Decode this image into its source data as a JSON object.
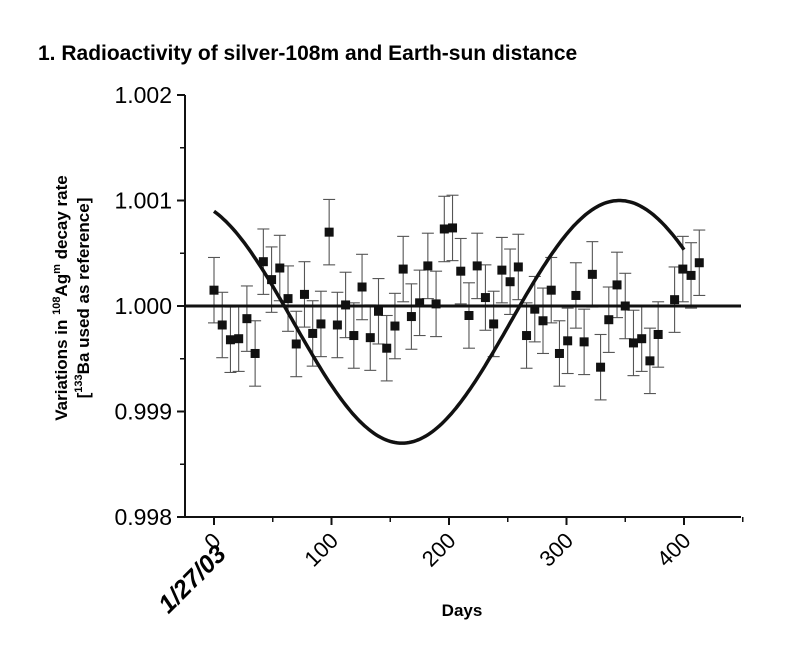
{
  "chart_data": {
    "type": "scatter",
    "title": "1. Radioactivity of silver-108m and Earth-sun distance",
    "xlabel": "Days",
    "ylabel": {
      "line1_prefix": "Variations in ",
      "line1_sup": "108",
      "line1_mid": "Ag",
      "line1_sup2": "m",
      "line1_suffix": " decay rate",
      "line2_prefix": "[",
      "line2_sup": "133",
      "line2_suffix": "Ba used as reference]"
    },
    "start_date": "1/27/03",
    "xlim": [
      0,
      450
    ],
    "ylim": [
      0.998,
      1.002
    ],
    "xticks": [
      {
        "value": 0,
        "label": "0"
      },
      {
        "value": 100,
        "label": "100"
      },
      {
        "value": 200,
        "label": "200"
      },
      {
        "value": 300,
        "label": "300"
      },
      {
        "value": 400,
        "label": "400"
      }
    ],
    "yticks": [
      {
        "value": 0.998,
        "label": "0.998"
      },
      {
        "value": 0.999,
        "label": "0.999"
      },
      {
        "value": 1.0,
        "label": "1.000"
      },
      {
        "value": 1.001,
        "label": "1.001"
      },
      {
        "value": 1.002,
        "label": "1.002"
      }
    ],
    "reference_line": 1.0,
    "curve": {
      "x_start": 0,
      "x_end": 400,
      "mean": 0.99985,
      "amplitude": 0.00115,
      "peak_day": 345,
      "period": 370
    },
    "error": 0.00031,
    "series": [
      {
        "values": [
          {
            "x": 0,
            "y": 1.00015
          },
          {
            "x": 7,
            "y": 0.99982
          },
          {
            "x": 14,
            "y": 0.99968
          },
          {
            "x": 21,
            "y": 0.99969
          },
          {
            "x": 28,
            "y": 0.99988
          },
          {
            "x": 35,
            "y": 0.99955
          },
          {
            "x": 42,
            "y": 1.00042
          },
          {
            "x": 49,
            "y": 1.00025
          },
          {
            "x": 56,
            "y": 1.00036
          },
          {
            "x": 63,
            "y": 1.00007
          },
          {
            "x": 70,
            "y": 0.99964
          },
          {
            "x": 77,
            "y": 1.00011
          },
          {
            "x": 84,
            "y": 0.99974
          },
          {
            "x": 91,
            "y": 0.99983
          },
          {
            "x": 98,
            "y": 1.0007
          },
          {
            "x": 105,
            "y": 0.99982
          },
          {
            "x": 112,
            "y": 1.00001
          },
          {
            "x": 119,
            "y": 0.99972
          },
          {
            "x": 126,
            "y": 1.00018
          },
          {
            "x": 133,
            "y": 0.9997
          },
          {
            "x": 140,
            "y": 0.99995
          },
          {
            "x": 147,
            "y": 0.9996
          },
          {
            "x": 154,
            "y": 0.99981
          },
          {
            "x": 161,
            "y": 1.00035
          },
          {
            "x": 168,
            "y": 0.9999
          },
          {
            "x": 175,
            "y": 1.00003
          },
          {
            "x": 182,
            "y": 1.00038
          },
          {
            "x": 189,
            "y": 1.00002
          },
          {
            "x": 196,
            "y": 1.00073
          },
          {
            "x": 203,
            "y": 1.00074
          },
          {
            "x": 210,
            "y": 1.00033
          },
          {
            "x": 217,
            "y": 0.99991
          },
          {
            "x": 224,
            "y": 1.00038
          },
          {
            "x": 231,
            "y": 1.00008
          },
          {
            "x": 238,
            "y": 0.99983
          },
          {
            "x": 245,
            "y": 1.00034
          },
          {
            "x": 252,
            "y": 1.00023
          },
          {
            "x": 259,
            "y": 1.00037
          },
          {
            "x": 266,
            "y": 0.99972
          },
          {
            "x": 273,
            "y": 0.99997
          },
          {
            "x": 280,
            "y": 0.99986
          },
          {
            "x": 287,
            "y": 1.00015
          },
          {
            "x": 294,
            "y": 0.99955
          },
          {
            "x": 301,
            "y": 0.99967
          },
          {
            "x": 308,
            "y": 1.0001
          },
          {
            "x": 315,
            "y": 0.99966
          },
          {
            "x": 322,
            "y": 1.0003
          },
          {
            "x": 329,
            "y": 0.99942
          },
          {
            "x": 336,
            "y": 0.99987
          },
          {
            "x": 343,
            "y": 1.0002
          },
          {
            "x": 350,
            "y": 1.0
          },
          {
            "x": 357,
            "y": 0.99965
          },
          {
            "x": 364,
            "y": 0.99969
          },
          {
            "x": 371,
            "y": 0.99948
          },
          {
            "x": 378,
            "y": 0.99973
          },
          {
            "x": 392,
            "y": 1.00006
          },
          {
            "x": 399,
            "y": 1.00035
          },
          {
            "x": 406,
            "y": 1.00029
          },
          {
            "x": 413,
            "y": 1.00041
          }
        ]
      }
    ],
    "colors": {
      "ink": "#111111",
      "error": "#555555"
    }
  }
}
